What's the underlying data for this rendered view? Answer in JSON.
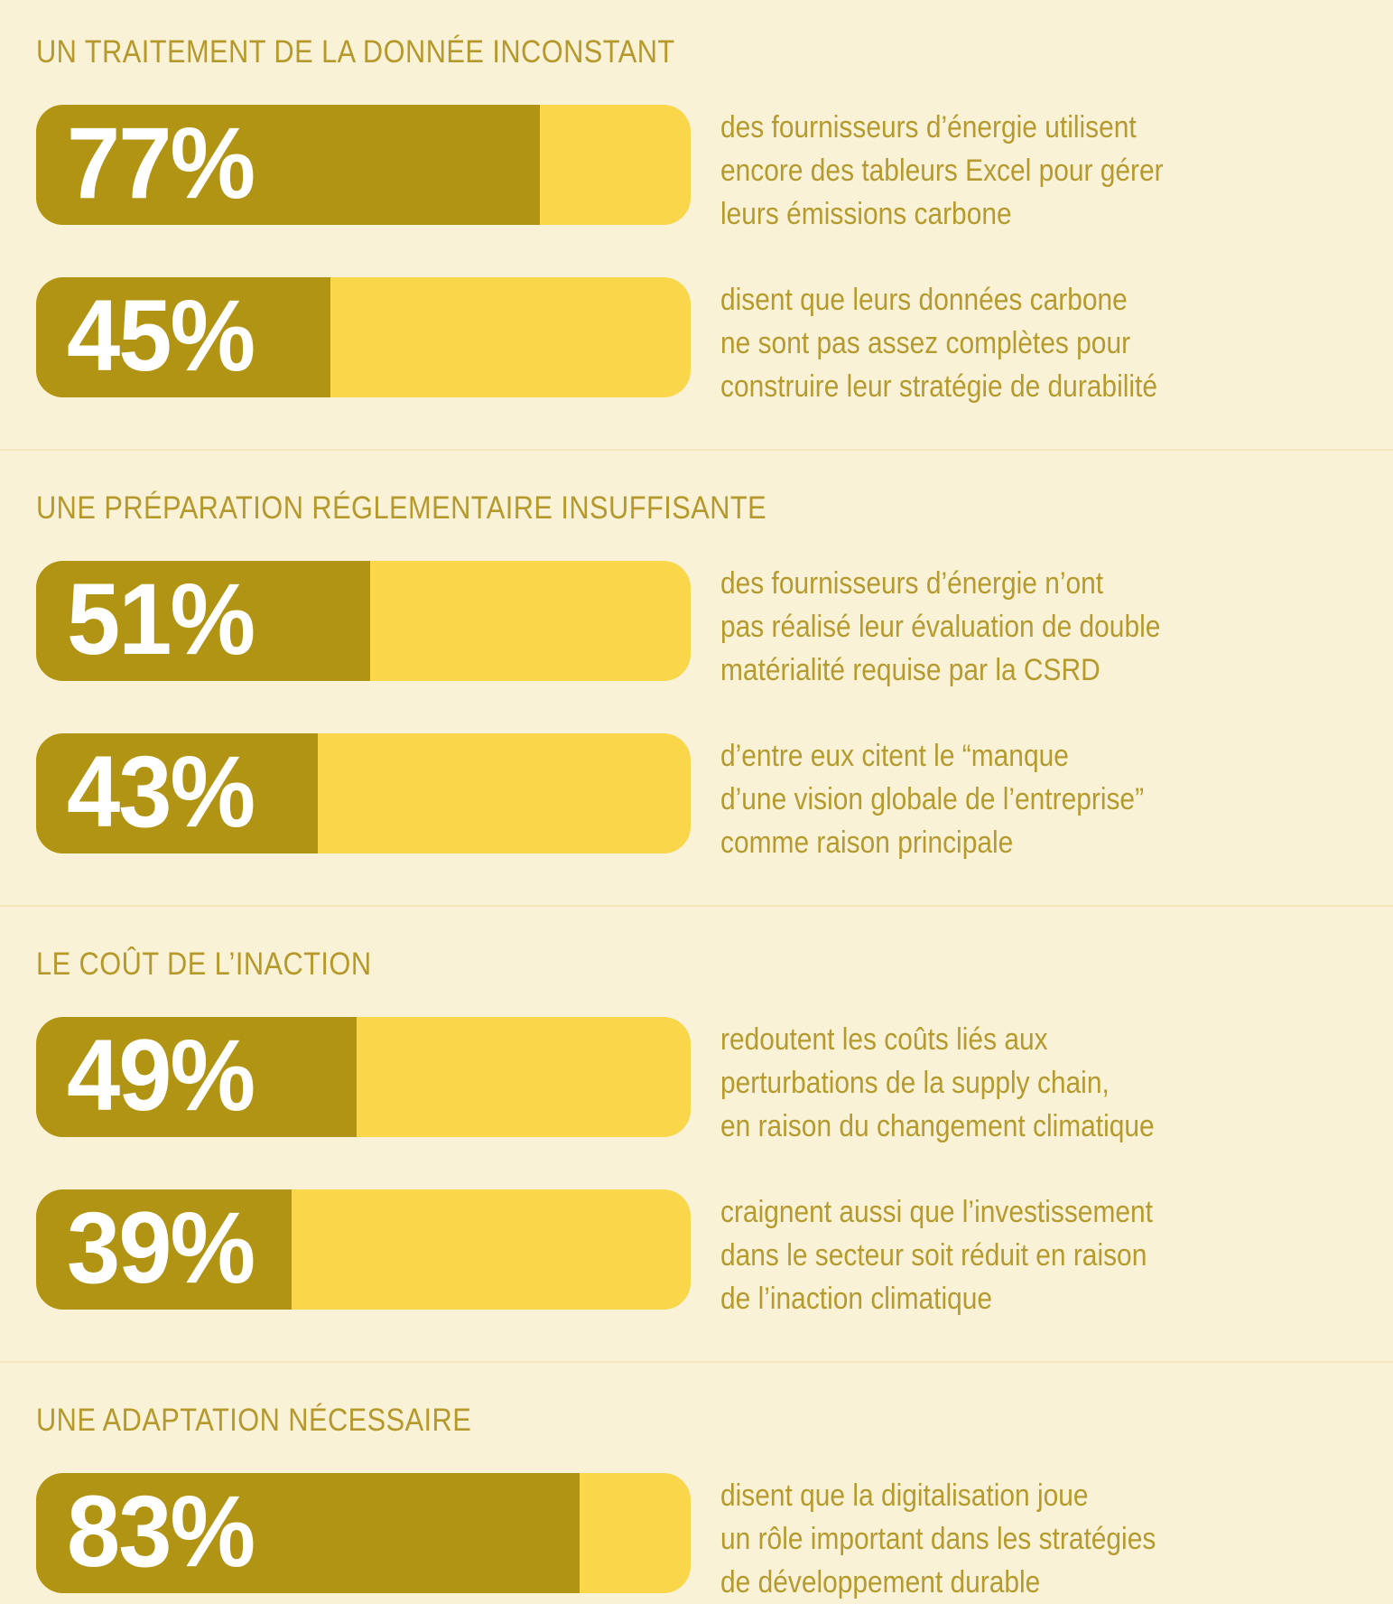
{
  "chart_data": {
    "type": "bar",
    "unit": "%",
    "orientation": "horizontal",
    "xlim": [
      0,
      100
    ],
    "colors": {
      "background": "#FAF2D7",
      "bar_fill": "#B19413",
      "bar_track": "#FAD64B",
      "text": "#B59B2F",
      "percent_label": "#FFFFFF",
      "divider": "#F3E6BD"
    },
    "sections": [
      {
        "title": "UN TRAITEMENT DE LA DONNÉE INCONSTANT",
        "stats": [
          {
            "value": 77,
            "label": "77%",
            "text": "des fournisseurs d’énergie utilisent\nencore des tableurs Excel pour gérer\nleurs émissions carbone"
          },
          {
            "value": 45,
            "label": "45%",
            "text": "disent que leurs données carbone\nne sont pas assez complètes pour\nconstruire leur stratégie de durabilité"
          }
        ]
      },
      {
        "title": "UNE PRÉPARATION RÉGLEMENTAIRE INSUFFISANTE",
        "stats": [
          {
            "value": 51,
            "label": "51%",
            "text": "des fournisseurs d’énergie n’ont\npas réalisé leur évaluation de double\nmatérialité requise par la CSRD"
          },
          {
            "value": 43,
            "label": "43%",
            "text": "d’entre eux citent le “manque\nd’une vision globale de l’entreprise”\ncomme raison principale"
          }
        ]
      },
      {
        "title": "LE COÛT DE L’INACTION",
        "stats": [
          {
            "value": 49,
            "label": "49%",
            "text": "redoutent les coûts liés aux\nperturbations de la supply chain,\nen raison du changement climatique"
          },
          {
            "value": 39,
            "label": "39%",
            "text": "craignent aussi que l’investissement\ndans le secteur soit réduit en raison\nde l’inaction climatique"
          }
        ]
      },
      {
        "title": "UNE ADAPTATION NÉCESSAIRE",
        "stats": [
          {
            "value": 83,
            "label": "83%",
            "text": "disent que la digitalisation joue\nun rôle important dans les stratégies\nde développement durable"
          }
        ]
      }
    ]
  }
}
